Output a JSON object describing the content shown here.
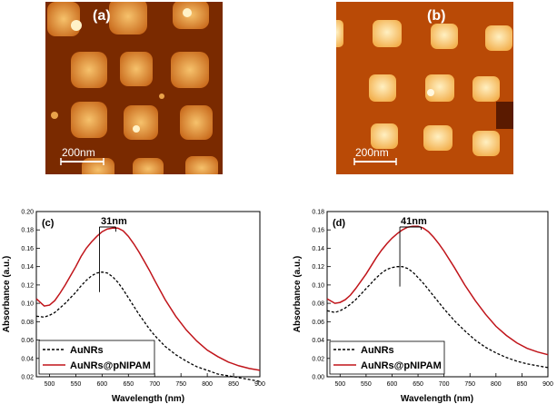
{
  "afm_images": [
    {
      "panel_label": "(a)",
      "scale_bar_label": "200nm"
    },
    {
      "panel_label": "(b)",
      "scale_bar_label": "200nm"
    }
  ],
  "colors": {
    "afm_a_background": "#7a2a00",
    "afm_a_particle": "#e9a24a",
    "afm_a_highlight": "#fff2c8",
    "afm_b_background": "#b94a06",
    "afm_b_particle": "#ffd58c",
    "afm_b_highlight": "#fff8e0",
    "series_aunrs": "#000000",
    "series_coated": "#c0141a"
  },
  "chart_data": [
    {
      "type": "line",
      "panel_label": "(c)",
      "xlabel": "Wavelength (nm)",
      "ylabel": "Absorbance (a.u.)",
      "xlim": [
        475,
        900
      ],
      "ylim": [
        0.02,
        0.2
      ],
      "xticks": [
        500,
        550,
        600,
        650,
        700,
        750,
        800,
        850,
        900
      ],
      "yticks": [
        0.02,
        0.04,
        0.06,
        0.08,
        0.1,
        0.12,
        0.14,
        0.16,
        0.18,
        0.2
      ],
      "ytick_labels": [
        "0.02",
        "0.04",
        "0.06",
        "0.08",
        "0.10",
        "0.12",
        "0.14",
        "0.16",
        "0.18",
        "0.20"
      ],
      "legend": {
        "position": "bottom-left"
      },
      "annotation": {
        "text": "31nm",
        "x1": 595,
        "x2": 626,
        "peak1": 0.134,
        "peak2": 0.182
      },
      "series": [
        {
          "name": "AuNRs",
          "style": "dashed",
          "x": [
            475,
            490,
            500,
            510,
            520,
            530,
            540,
            550,
            560,
            570,
            580,
            590,
            600,
            610,
            620,
            630,
            640,
            650,
            660,
            670,
            680,
            690,
            700,
            720,
            740,
            760,
            780,
            800,
            820,
            840,
            860,
            880,
            900
          ],
          "values": [
            0.086,
            0.085,
            0.087,
            0.09,
            0.095,
            0.1,
            0.106,
            0.112,
            0.119,
            0.125,
            0.13,
            0.133,
            0.134,
            0.133,
            0.129,
            0.123,
            0.115,
            0.106,
            0.097,
            0.088,
            0.08,
            0.072,
            0.065,
            0.053,
            0.044,
            0.037,
            0.031,
            0.027,
            0.023,
            0.021,
            0.019,
            0.017,
            0.015
          ]
        },
        {
          "name": "AuNRs@pNIPAM",
          "style": "solid",
          "x": [
            475,
            490,
            500,
            510,
            520,
            530,
            540,
            550,
            560,
            570,
            580,
            590,
            600,
            610,
            620,
            630,
            640,
            650,
            660,
            670,
            680,
            690,
            700,
            720,
            740,
            760,
            780,
            800,
            820,
            840,
            860,
            880,
            900
          ],
          "values": [
            0.105,
            0.097,
            0.098,
            0.103,
            0.111,
            0.12,
            0.13,
            0.14,
            0.151,
            0.16,
            0.167,
            0.173,
            0.178,
            0.181,
            0.182,
            0.182,
            0.179,
            0.173,
            0.165,
            0.156,
            0.146,
            0.136,
            0.125,
            0.104,
            0.086,
            0.071,
            0.059,
            0.049,
            0.042,
            0.036,
            0.032,
            0.029,
            0.027
          ]
        }
      ]
    },
    {
      "type": "line",
      "panel_label": "(d)",
      "xlabel": "Wavelength (nm)",
      "ylabel": "Absorbance (a.u.)",
      "xlim": [
        475,
        900
      ],
      "ylim": [
        0.0,
        0.18
      ],
      "xticks": [
        500,
        550,
        600,
        650,
        700,
        750,
        800,
        850,
        900
      ],
      "yticks": [
        0.0,
        0.02,
        0.04,
        0.06,
        0.08,
        0.1,
        0.12,
        0.14,
        0.16,
        0.18
      ],
      "ytick_labels": [
        "0.00",
        "0.02",
        "0.04",
        "0.06",
        "0.08",
        "0.10",
        "0.12",
        "0.14",
        "0.16",
        "0.18"
      ],
      "legend": {
        "position": "bottom-left"
      },
      "annotation": {
        "text": "41nm",
        "x1": 615,
        "x2": 656,
        "peak1": 0.12,
        "peak2": 0.164
      },
      "series": [
        {
          "name": "AuNRs",
          "style": "dashed",
          "x": [
            475,
            490,
            500,
            510,
            520,
            530,
            540,
            550,
            560,
            570,
            580,
            590,
            600,
            610,
            620,
            630,
            640,
            650,
            660,
            670,
            680,
            690,
            700,
            720,
            740,
            760,
            780,
            800,
            820,
            840,
            860,
            880,
            900
          ],
          "values": [
            0.072,
            0.07,
            0.072,
            0.075,
            0.079,
            0.084,
            0.09,
            0.096,
            0.102,
            0.108,
            0.113,
            0.117,
            0.119,
            0.12,
            0.12,
            0.118,
            0.114,
            0.108,
            0.102,
            0.095,
            0.088,
            0.081,
            0.074,
            0.061,
            0.05,
            0.04,
            0.032,
            0.026,
            0.021,
            0.017,
            0.014,
            0.012,
            0.01
          ]
        },
        {
          "name": "AuNRs@pNIPAM",
          "style": "solid",
          "x": [
            475,
            490,
            500,
            510,
            520,
            530,
            540,
            550,
            560,
            570,
            580,
            590,
            600,
            610,
            620,
            630,
            640,
            650,
            660,
            670,
            680,
            690,
            700,
            720,
            740,
            760,
            780,
            800,
            820,
            840,
            860,
            880,
            900
          ],
          "values": [
            0.085,
            0.08,
            0.081,
            0.084,
            0.089,
            0.096,
            0.104,
            0.112,
            0.121,
            0.13,
            0.138,
            0.145,
            0.151,
            0.156,
            0.16,
            0.163,
            0.164,
            0.164,
            0.162,
            0.158,
            0.152,
            0.145,
            0.137,
            0.119,
            0.1,
            0.083,
            0.068,
            0.055,
            0.045,
            0.037,
            0.031,
            0.027,
            0.024
          ]
        }
      ]
    }
  ]
}
